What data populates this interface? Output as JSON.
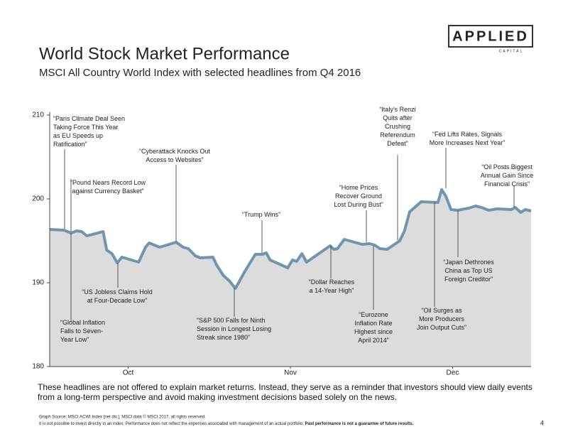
{
  "logo": {
    "name": "APPLIED",
    "sub": "CAPITAL"
  },
  "chart_data": {
    "type": "line",
    "title": "World Stock Market Performance",
    "subtitle": "MSCI All Country World Index with selected headlines from Q4 2016",
    "x": [
      0,
      2.7,
      4.1,
      5.2,
      6.1,
      7.1,
      10.2,
      10.9,
      11.9,
      12.9,
      13.8,
      17,
      18.3,
      19,
      21,
      24.2,
      25.5,
      26.5,
      27.8,
      28.8,
      31.2,
      31.9,
      33.2,
      34.3,
      35.5,
      37.3,
      39.3,
      40.7,
      41.4,
      42.1,
      45.5,
      46.4,
      47.2,
      48.2,
      49.1,
      53.6,
      54.3,
      55,
      56.3,
      59.7,
      61.1,
      62.1,
      63.1,
      64.5,
      66.9,
      67.8,
      68.8,
      71,
      74.2,
      74.9,
      75.7,
      76.7,
      78,
      80.1,
      81.4,
      82.5,
      83.9,
      85.5,
      88.2,
      89,
      90,
      90.9,
      92
    ],
    "values": [
      196.36,
      196.27,
      195.93,
      196.19,
      196.1,
      195.59,
      196.1,
      193.9,
      193.47,
      192.37,
      193.05,
      192.46,
      194.24,
      194.75,
      194.24,
      194.83,
      194.24,
      194.07,
      193.22,
      192.97,
      193.05,
      192.12,
      190.85,
      190.25,
      189.32,
      191.36,
      193.39,
      193.39,
      193.56,
      192.71,
      191.78,
      192.71,
      192.54,
      193.47,
      192.46,
      194.41,
      193.98,
      194.07,
      195.17,
      194.58,
      194.66,
      194.49,
      194.07,
      193.98,
      195.0,
      196.19,
      198.47,
      199.66,
      199.58,
      201.1,
      200.34,
      198.73,
      198.64,
      198.9,
      199.15,
      198.98,
      198.64,
      198.81,
      198.73,
      198.98,
      198.39,
      198.73,
      198.56
    ],
    "color": "#6f96ad",
    "area_color": "#dcdcdc",
    "xlim": [
      0,
      92
    ],
    "xticks": [
      {
        "value": 15,
        "label": "Oct"
      },
      {
        "value": 46,
        "label": "Nov"
      },
      {
        "value": 77,
        "label": "Dec"
      }
    ],
    "ylim": [
      180,
      210
    ],
    "yticks": [
      180,
      190,
      200,
      210
    ],
    "grid": false,
    "annotations": [
      [
        "“Paris Climate Deal Seen",
        "Taking Force This Year",
        "as EU Speeds up",
        "Ratification”"
      ],
      [
        "“Pound Nears Record Low",
        "against Currency Basket”"
      ],
      [
        "“Global Inflation",
        "Falls to Seven-",
        "Year Low”"
      ],
      [
        "“US Jobless Claims Hold",
        "at Four-Decade Low”"
      ],
      [
        "“Cyberattack Knocks Out",
        "Access to Websites”"
      ],
      [
        "“S&P 500 Falls for Ninth",
        "Session in Longest Losing",
        "Streak since 1980”"
      ],
      [
        "“Trump Wins”"
      ],
      [
        "“Dollar Reaches",
        "a 14-Year High”"
      ],
      [
        "“Home Prices",
        "Recover Ground",
        "Lost During Bust”"
      ],
      [
        "“Eurozone",
        "Inflation Rate",
        "Highest since",
        "April 2014”"
      ],
      [
        "“Italy’s Renzi",
        "Quits after",
        "Crushing",
        "Referendum",
        "Defeat”"
      ],
      [
        "“Fed Lifts Rates, Signals",
        "More Increases Next Year”"
      ],
      [
        "“Oil Surges as",
        "More Producers",
        "Join Output Cuts”"
      ],
      [
        "“Japan Dethrones",
        "China as Top US",
        "Foreign Creditor”"
      ],
      [
        "“Oil Posts Biggest",
        "Annual Gain Since",
        "Financial Crisis”"
      ]
    ]
  },
  "footnote": "These headlines are not offered to explain market returns. Instead, they serve as a reminder that investors should view daily events from a long-term perspective and avoid making investment decisions based solely on the news.",
  "source": "Graph Source: MSCI ACWI Index [net div.]. MSCI data © MSCI 2017, all rights reserved.",
  "disclaimer": "It is not possible to invest directly in an index. Performance does not reflect the expenses associated with management of an actual portfolio.",
  "disclaimer_bold": "Past performance is not a guarantee of future results.",
  "page": "4"
}
